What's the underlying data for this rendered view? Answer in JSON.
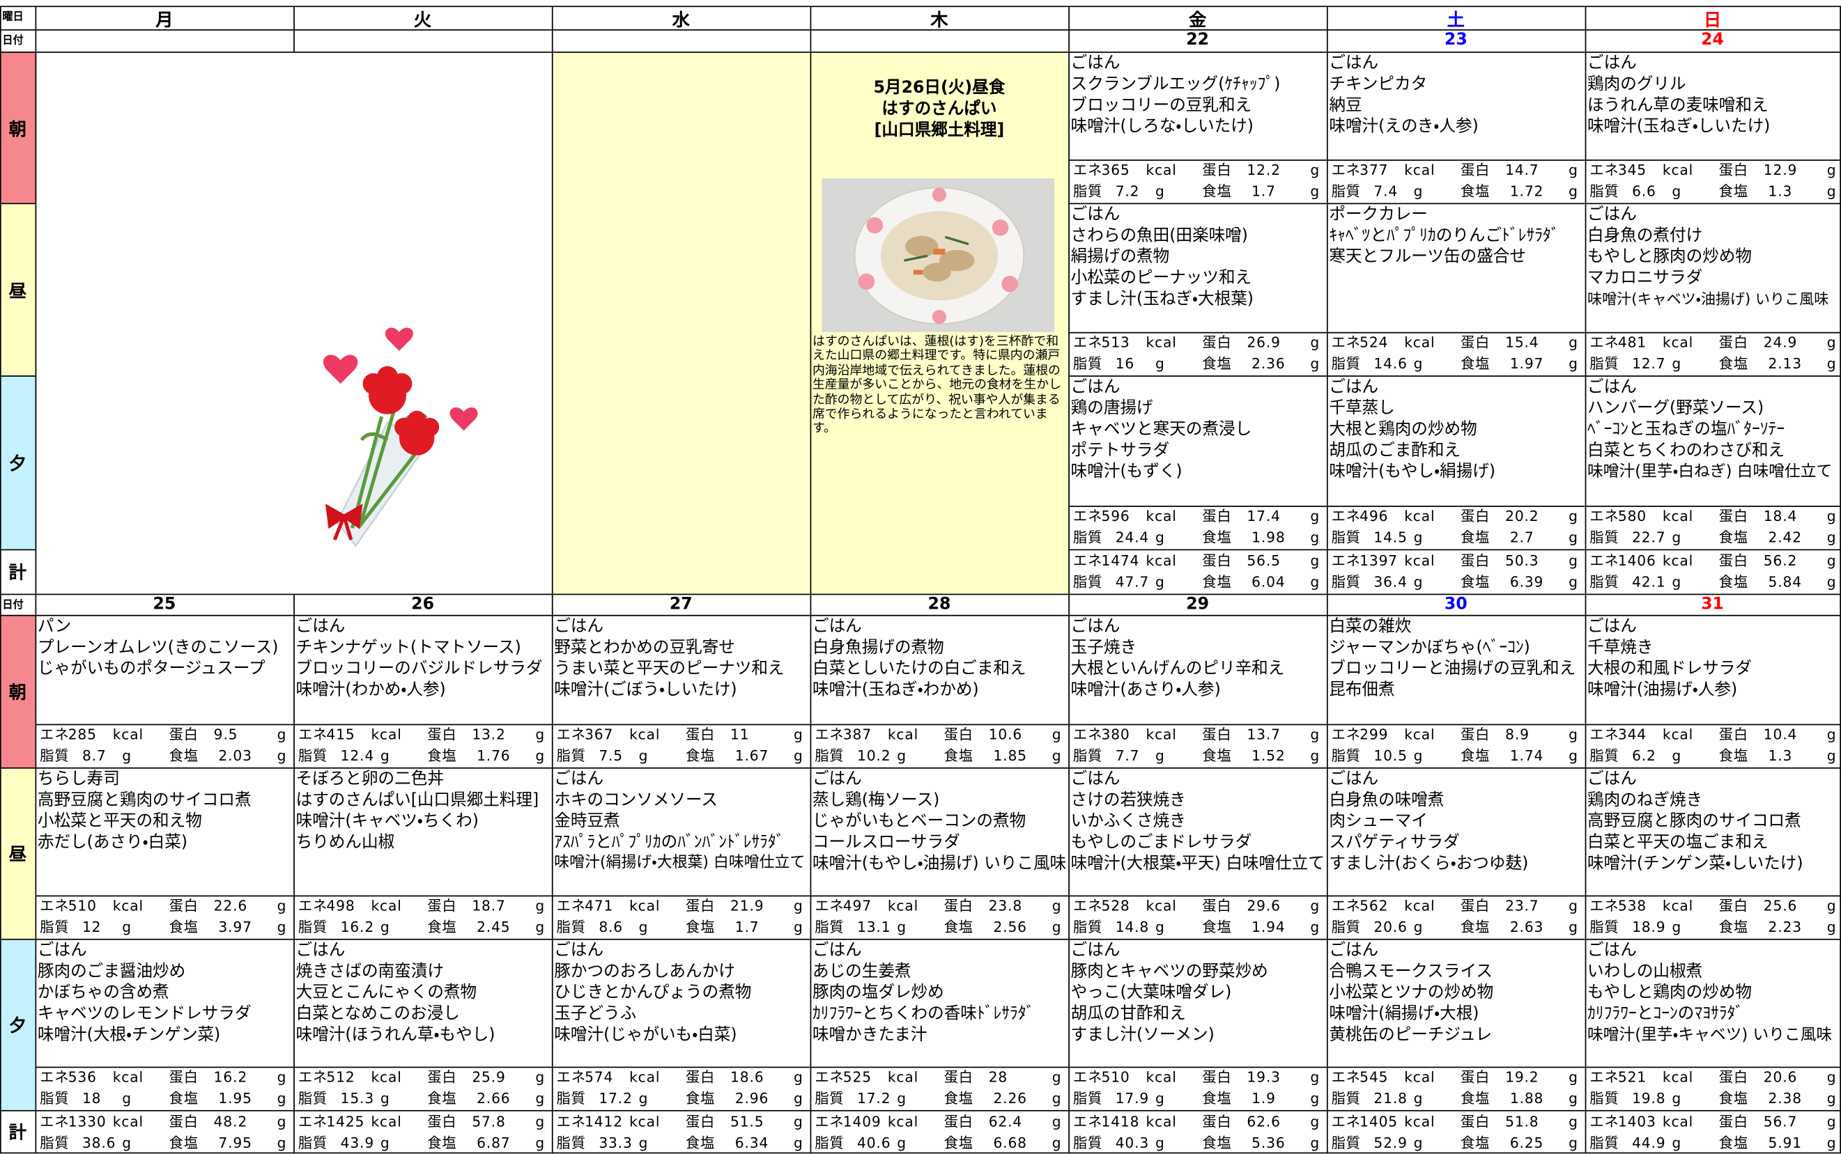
{
  "header": {
    "weekday_label": "曜日",
    "date_label": "日付",
    "weekdays": [
      "月",
      "火",
      "水",
      "木",
      "金",
      "土",
      "日"
    ]
  },
  "meal_labels": {
    "breakfast": "朝",
    "lunch": "昼",
    "dinner": "夕",
    "total": "計"
  },
  "units": {
    "energy": "エネ",
    "kcal": "kcal",
    "protein": "蛋白",
    "gram": "g",
    "fat": "脂質",
    "salt": "食塩"
  },
  "feature": {
    "title": [
      "5月26日(火)昼食",
      "はすのさんぱい",
      "[山口県郷土料理]"
    ],
    "description": "はすのさんぱいは、蓮根(はす)を三杯酢で和えた山口県の郷土料理です。特に県内の瀬戸内海沿岸地域で伝えられてきました。蓮根の生産量が多いことから、地元の食材を生かした酢の物として広がり、祝い事や人が集まる席で作られるようになったと言われています。"
  },
  "weeks": [
    {
      "days": [
        {
          "date": 22,
          "breakfast": {
            "items": [
              "ごはん",
              "スクランブルエッグ(ｹﾁｬｯﾌﾟ)",
              "ブロッコリーの豆乳和え",
              "味噌汁(しろな・しいたけ)"
            ],
            "energy": 365,
            "protein": 12.2,
            "fat": 7.2,
            "salt": 1.7
          },
          "lunch": {
            "items": [
              "ごはん",
              "さわらの魚田(田楽味噌)",
              "絹揚げの煮物",
              "小松菜のピーナッツ和え",
              "すまし汁(玉ねぎ・大根葉)"
            ],
            "energy": 513,
            "protein": 26.9,
            "fat": 16,
            "salt": 2.36
          },
          "dinner": {
            "items": [
              "ごはん",
              "鶏の唐揚げ",
              "キャベツと寒天の煮浸し",
              "ポテトサラダ",
              "味噌汁(もずく)"
            ],
            "energy": 596,
            "protein": 17.4,
            "fat": 24.4,
            "salt": 1.98
          },
          "total": {
            "energy": 1474,
            "protein": 56.5,
            "fat": 47.7,
            "salt": 6.04
          }
        },
        {
          "date": 23,
          "breakfast": {
            "items": [
              "ごはん",
              "チキンピカタ",
              "納豆",
              "味噌汁(えのき・人参)"
            ],
            "energy": 377,
            "protein": 14.7,
            "fat": 7.4,
            "salt": 1.72
          },
          "lunch": {
            "items": [
              "ポークカレー",
              "ｷｬﾍﾞﾂとﾊﾟﾌﾟﾘｶのりんごﾄﾞﾚｻﾗﾀﾞ",
              "寒天とフルーツ缶の盛合せ"
            ],
            "energy": 524,
            "protein": 15.4,
            "fat": 14.6,
            "salt": 1.97
          },
          "dinner": {
            "items": [
              "ごはん",
              "千草蒸し",
              "大根と鶏肉の炒め物",
              "胡瓜のごま酢和え",
              "味噌汁(もやし・絹揚げ)"
            ],
            "energy": 496,
            "protein": 20.2,
            "fat": 14.5,
            "salt": 2.7
          },
          "total": {
            "energy": 1397,
            "protein": 50.3,
            "fat": 36.4,
            "salt": 6.39
          }
        },
        {
          "date": 24,
          "breakfast": {
            "items": [
              "ごはん",
              "鶏肉のグリル",
              "ほうれん草の麦味噌和え",
              "味噌汁(玉ねぎ・しいたけ)"
            ],
            "energy": 345,
            "protein": 12.9,
            "fat": 6.6,
            "salt": 1.3
          },
          "lunch": {
            "items": [
              "ごはん",
              "白身魚の煮付け",
              "もやしと豚肉の炒め物",
              "マカロニサラダ",
              "味噌汁(キャベツ・油揚げ) いりこ風味"
            ],
            "energy": 481,
            "protein": 24.9,
            "fat": 12.7,
            "salt": 2.13
          },
          "dinner": {
            "items": [
              "ごはん",
              "ハンバーグ(野菜ソース)",
              "ﾍﾞｰｺﾝと玉ねぎの塩ﾊﾞﾀｰｿﾃｰ",
              "白菜とちくわのわさび和え",
              "味噌汁(里芋・白ねぎ) 白味噌仕立て"
            ],
            "energy": 580,
            "protein": 18.4,
            "fat": 22.7,
            "salt": 2.42
          },
          "total": {
            "energy": 1406,
            "protein": 56.2,
            "fat": 42.1,
            "salt": 5.84
          }
        }
      ]
    },
    {
      "days": [
        {
          "date": 25,
          "breakfast": {
            "items": [
              "パン",
              "プレーンオムレツ(きのこソース)",
              "じゃがいものポタージュスープ"
            ],
            "energy": 285,
            "protein": 9.5,
            "fat": 8.7,
            "salt": 2.03
          },
          "lunch": {
            "items": [
              "ちらし寿司",
              "高野豆腐と鶏肉のサイコロ煮",
              "小松菜と平天の和え物",
              "赤だし(あさり・白菜)"
            ],
            "energy": 510,
            "protein": 22.6,
            "fat": 12,
            "salt": 3.97
          },
          "dinner": {
            "items": [
              "ごはん",
              "豚肉のごま醤油炒め",
              "かぼちゃの含め煮",
              "キャベツのレモンドレサラダ",
              "味噌汁(大根・チンゲン菜)"
            ],
            "energy": 536,
            "protein": 16.2,
            "fat": 18,
            "salt": 1.95
          },
          "total": {
            "energy": 1330,
            "protein": 48.2,
            "fat": 38.6,
            "salt": 7.95
          }
        },
        {
          "date": 26,
          "breakfast": {
            "items": [
              "ごはん",
              "チキンナゲット(トマトソース)",
              "ブロッコリーのバジルドレサラダ",
              "味噌汁(わかめ・人参)"
            ],
            "energy": 415,
            "protein": 13.2,
            "fat": 12.4,
            "salt": 1.76
          },
          "lunch": {
            "items": [
              "そぼろと卵の二色丼",
              "はすのさんぱい[山口県郷土料理]",
              "味噌汁(キャベツ・ちくわ)",
              "ちりめん山椒"
            ],
            "energy": 498,
            "protein": 18.7,
            "fat": 16.2,
            "salt": 2.45
          },
          "dinner": {
            "items": [
              "ごはん",
              "焼きさばの南蛮漬け",
              "大豆とこんにゃくの煮物",
              "白菜となめこのお浸し",
              "味噌汁(ほうれん草・もやし)"
            ],
            "energy": 512,
            "protein": 25.9,
            "fat": 15.3,
            "salt": 2.66
          },
          "total": {
            "energy": 1425,
            "protein": 57.8,
            "fat": 43.9,
            "salt": 6.87
          }
        },
        {
          "date": 27,
          "breakfast": {
            "items": [
              "ごはん",
              "野菜とわかめの豆乳寄せ",
              "うまい菜と平天のピーナツ和え",
              "味噌汁(ごぼう・しいたけ)"
            ],
            "energy": 367,
            "protein": 11,
            "fat": 7.5,
            "salt": 1.67
          },
          "lunch": {
            "items": [
              "ごはん",
              "ホキのコンソメソース",
              "金時豆煮",
              "ｱｽﾊﾟﾗとﾊﾟﾌﾟﾘｶのﾊﾞﾝﾊﾞﾝﾄﾞﾚｻﾗﾀﾞ",
              "味噌汁(絹揚げ・大根葉) 白味噌仕立て"
            ],
            "energy": 471,
            "protein": 21.9,
            "fat": 8.6,
            "salt": 1.7
          },
          "dinner": {
            "items": [
              "ごはん",
              "豚かつのおろしあんかけ",
              "ひじきとかんぴょうの煮物",
              "玉子どうふ",
              "味噌汁(じゃがいも・白菜)"
            ],
            "energy": 574,
            "protein": 18.6,
            "fat": 17.2,
            "salt": 2.96
          },
          "total": {
            "energy": 1412,
            "protein": 51.5,
            "fat": 33.3,
            "salt": 6.34
          }
        },
        {
          "date": 28,
          "breakfast": {
            "items": [
              "ごはん",
              "白身魚揚げの煮物",
              "白菜としいたけの白ごま和え",
              "味噌汁(玉ねぎ・わかめ)"
            ],
            "energy": 387,
            "protein": 10.6,
            "fat": 10.2,
            "salt": 1.85
          },
          "lunch": {
            "items": [
              "ごはん",
              "蒸し鶏(梅ソース)",
              "じゃがいもとベーコンの煮物",
              "コールスローサラダ",
              "味噌汁(もやし・油揚げ) いりこ風味"
            ],
            "energy": 497,
            "protein": 23.8,
            "fat": 13.1,
            "salt": 2.56
          },
          "dinner": {
            "items": [
              "ごはん",
              "あじの生姜煮",
              "豚肉の塩ダレ炒め",
              "ｶﾘﾌﾗﾜｰとちくわの香味ﾄﾞﾚｻﾗﾀﾞ",
              "味噌かきたま汁"
            ],
            "energy": 525,
            "protein": 28,
            "fat": 17.2,
            "salt": 2.26
          },
          "total": {
            "energy": 1409,
            "protein": 62.4,
            "fat": 40.6,
            "salt": 6.68
          }
        },
        {
          "date": 29,
          "breakfast": {
            "items": [
              "ごはん",
              "玉子焼き",
              "大根といんげんのピリ辛和え",
              "味噌汁(あさり・人参)"
            ],
            "energy": 380,
            "protein": 13.7,
            "fat": 7.7,
            "salt": 1.52
          },
          "lunch": {
            "items": [
              "ごはん",
              "さけの若狭焼き",
              "いかふくさ焼き",
              "もやしのごまドレサラダ",
              "味噌汁(大根葉・平天) 白味噌仕立て"
            ],
            "energy": 528,
            "protein": 29.6,
            "fat": 14.8,
            "salt": 1.94
          },
          "dinner": {
            "items": [
              "ごはん",
              "豚肉とキャベツの野菜炒め",
              "やっこ(大葉味噌ダレ)",
              "胡瓜の甘酢和え",
              "すまし汁(ソーメン)"
            ],
            "energy": 510,
            "protein": 19.3,
            "fat": 17.9,
            "salt": 1.9
          },
          "total": {
            "energy": 1418,
            "protein": 62.6,
            "fat": 40.3,
            "salt": 5.36
          }
        },
        {
          "date": 30,
          "breakfast": {
            "items": [
              "白菜の雑炊",
              "ジャーマンかぼちゃ(ﾍﾞｰｺﾝ)",
              "ブロッコリーと油揚げの豆乳和え",
              "昆布佃煮"
            ],
            "energy": 299,
            "protein": 8.9,
            "fat": 10.5,
            "salt": 1.74
          },
          "lunch": {
            "items": [
              "ごはん",
              "白身魚の味噌煮",
              "肉シューマイ",
              "スパゲティサラダ",
              "すまし汁(おくら・おつゆ麸)"
            ],
            "energy": 562,
            "protein": 23.7,
            "fat": 20.6,
            "salt": 2.63
          },
          "dinner": {
            "items": [
              "ごはん",
              "合鴨スモークスライス",
              "小松菜とツナの炒め物",
              "味噌汁(絹揚げ・大根)",
              "黄桃缶のピーチジュレ"
            ],
            "energy": 545,
            "protein": 19.2,
            "fat": 21.8,
            "salt": 1.88
          },
          "total": {
            "energy": 1405,
            "protein": 51.8,
            "fat": 52.9,
            "salt": 6.25
          }
        },
        {
          "date": 31,
          "breakfast": {
            "items": [
              "ごはん",
              "千草焼き",
              "大根の和風ドレサラダ",
              "味噌汁(油揚げ・人参)"
            ],
            "energy": 344,
            "protein": 10.4,
            "fat": 6.2,
            "salt": 1.3
          },
          "lunch": {
            "items": [
              "ごはん",
              "鶏肉のねぎ焼き",
              "高野豆腐と豚肉のサイコロ煮",
              "白菜と平天の塩ごま和え",
              "味噌汁(チンゲン菜・しいたけ)"
            ],
            "energy": 538,
            "protein": 25.6,
            "fat": 18.9,
            "salt": 2.23
          },
          "dinner": {
            "items": [
              "ごはん",
              "いわしの山椒煮",
              "もやしと鶏肉の炒め物",
              "ｶﾘﾌﾗﾜｰとｺｰﾝのﾏﾖｻﾗﾀﾞ",
              "味噌汁(里芋・キャベツ) いりこ風味"
            ],
            "energy": 521,
            "protein": 20.6,
            "fat": 19.8,
            "salt": 2.38
          },
          "total": {
            "energy": 1403,
            "protein": 56.7,
            "fat": 44.9,
            "salt": 5.91
          }
        }
      ]
    }
  ]
}
